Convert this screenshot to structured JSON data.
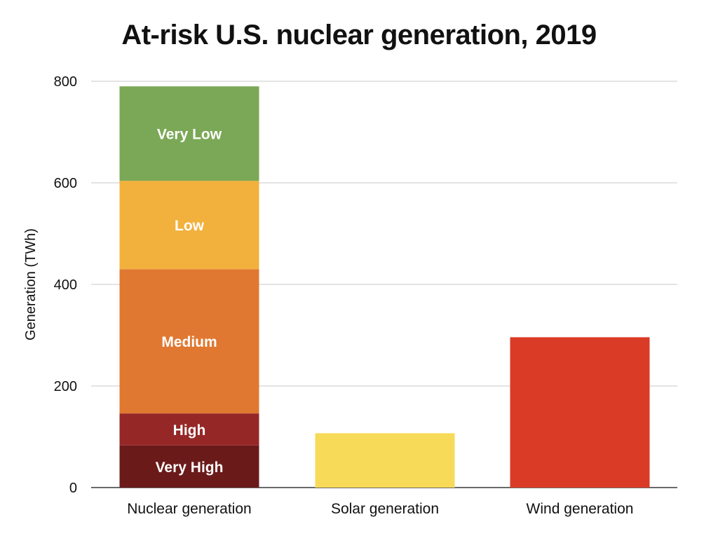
{
  "chart_data": {
    "type": "bar",
    "title": "At-risk U.S. nuclear generation, 2019",
    "xlabel": "",
    "ylabel": "Generation (TWh)",
    "ylim": [
      0,
      800
    ],
    "yticks": [
      0,
      200,
      400,
      600,
      800
    ],
    "grid": true,
    "categories": [
      "Nuclear generation",
      "Solar generation",
      "Wind generation"
    ],
    "stacked_segments": [
      {
        "category": "Nuclear generation",
        "label": "Very High",
        "value": 83,
        "color": "#6b1a1a"
      },
      {
        "category": "Nuclear generation",
        "label": "High",
        "value": 63,
        "color": "#962727"
      },
      {
        "category": "Nuclear generation",
        "label": "Medium",
        "value": 284,
        "color": "#e07832"
      },
      {
        "category": "Nuclear generation",
        "label": "Low",
        "value": 174,
        "color": "#f2b13d"
      },
      {
        "category": "Nuclear generation",
        "label": "Very Low",
        "value": 186,
        "color": "#7ba856"
      }
    ],
    "bars": [
      {
        "category": "Solar generation",
        "value": 107,
        "color": "#f7da57"
      },
      {
        "category": "Wind generation",
        "value": 296,
        "color": "#da3b27"
      }
    ]
  }
}
